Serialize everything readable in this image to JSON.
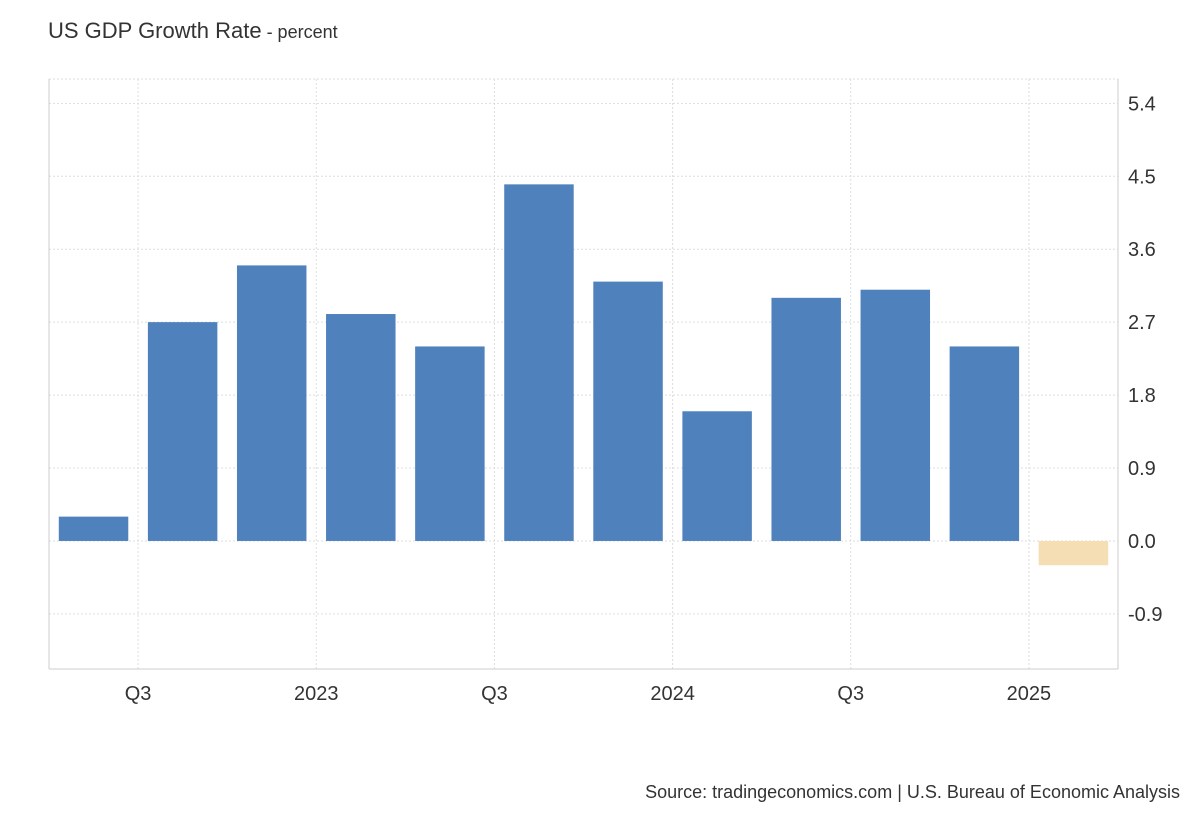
{
  "header": {
    "title": "US GDP Growth Rate",
    "subtitle": " - percent"
  },
  "footer": {
    "source": "Source: tradingeconomics.com | U.S. Bureau of Economic Analysis"
  },
  "colors": {
    "bar_positive": "#4f81bd",
    "bar_forecast": "#f5deb3",
    "grid": "#dddddd",
    "axis": "#cccccc",
    "text": "#333333"
  },
  "chart_data": {
    "type": "bar",
    "title": "US GDP Growth Rate",
    "subtitle": "percent",
    "xlabel": "",
    "ylabel": "",
    "ylim": [
      -1.58,
      5.7
    ],
    "yticks": [
      -0.9,
      0.0,
      0.9,
      1.8,
      2.7,
      3.6,
      4.5,
      5.4
    ],
    "ytick_labels": [
      "-0.9",
      "0.0",
      "0.9",
      "1.8",
      "2.7",
      "3.6",
      "4.5",
      "5.4"
    ],
    "xtick_labels": [
      {
        "label": "Q3",
        "after_bar": 0
      },
      {
        "label": "2023",
        "after_bar": 2
      },
      {
        "label": "Q3",
        "after_bar": 4
      },
      {
        "label": "2024",
        "after_bar": 6
      },
      {
        "label": "Q3",
        "after_bar": 8
      },
      {
        "label": "2025",
        "after_bar": 10
      }
    ],
    "grid": true,
    "legend": "none",
    "series": [
      {
        "values": [
          0.3,
          2.7,
          3.4,
          2.8,
          2.4,
          4.4,
          3.2,
          1.6,
          3.0,
          3.1,
          2.4,
          -0.3
        ],
        "forecast_from_index": 11
      }
    ]
  }
}
